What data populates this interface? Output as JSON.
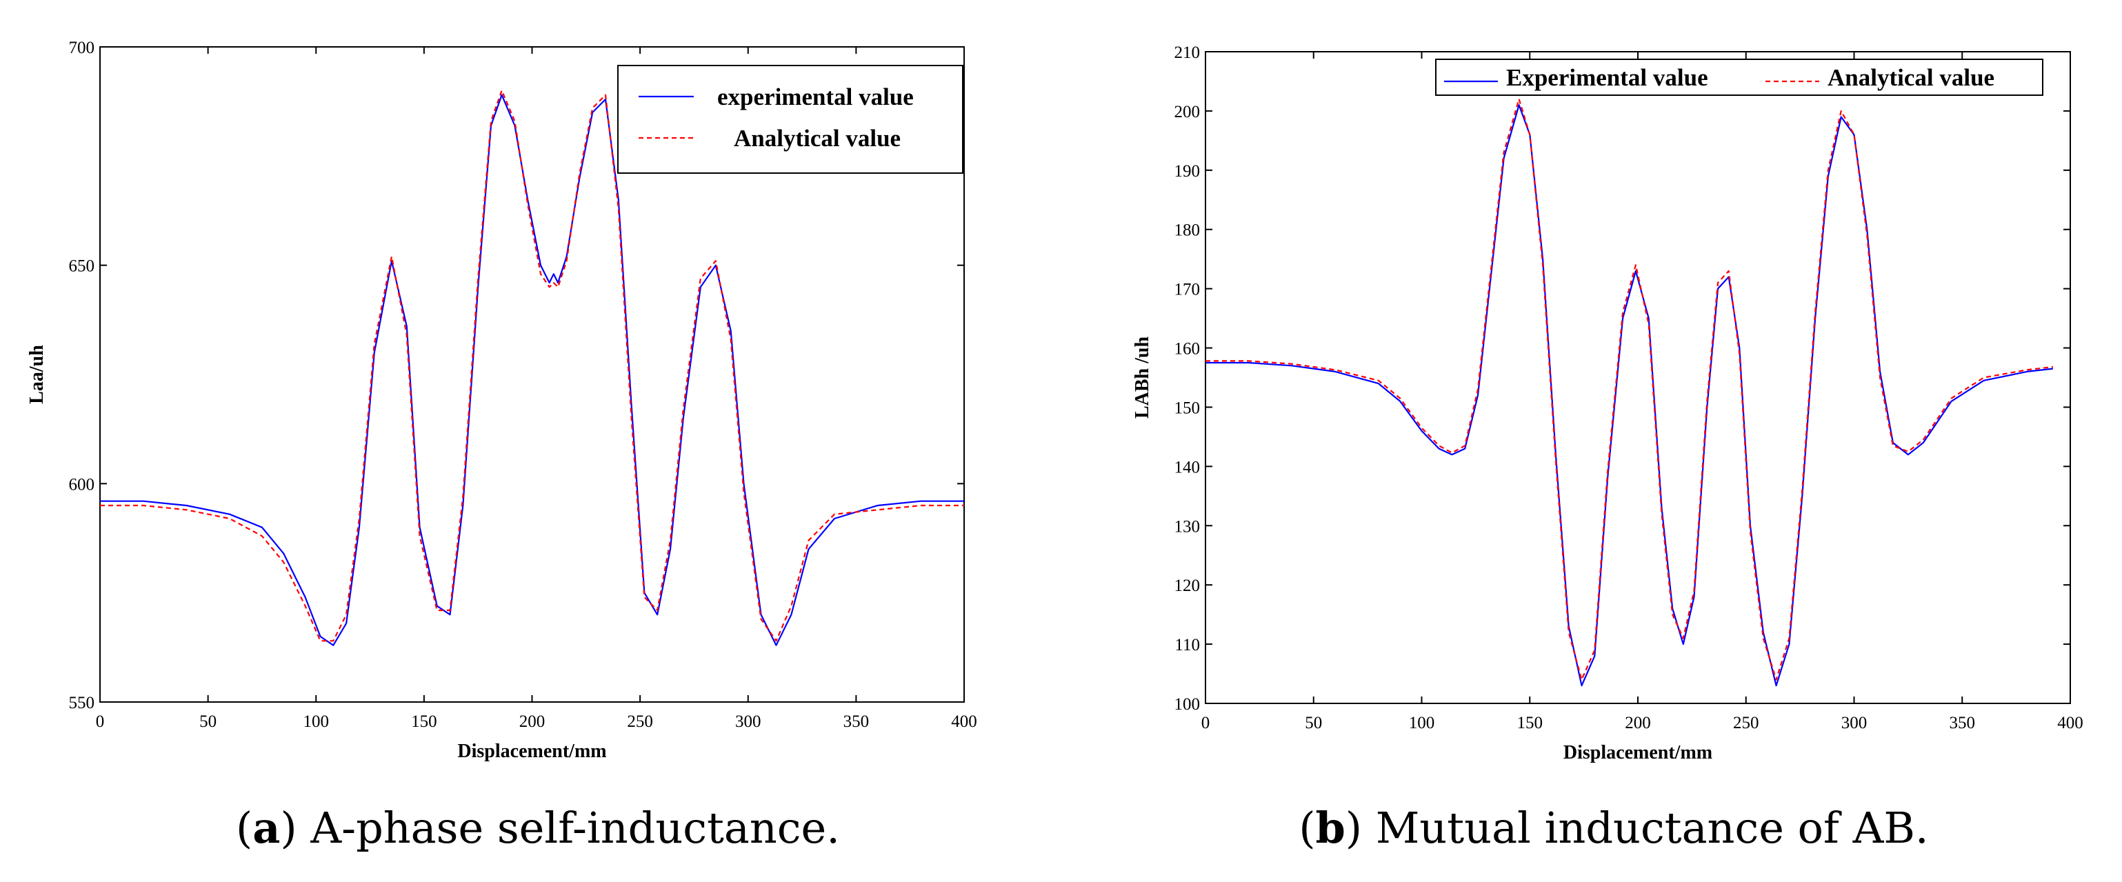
{
  "chart_data": [
    {
      "type": "line",
      "caption": {
        "letter": "a",
        "text": "A-phase self-inductance."
      },
      "xlabel": "Displacement/mm",
      "ylabel": "Laa/uh",
      "xlim": [
        0,
        400
      ],
      "ylim": [
        550,
        700
      ],
      "xticks": [
        0,
        50,
        100,
        150,
        200,
        250,
        300,
        350,
        400
      ],
      "yticks": [
        550,
        600,
        650,
        700
      ],
      "legend": {
        "position": "top-right",
        "layout": "vertical"
      },
      "series": [
        {
          "name": "experimental value",
          "color": "#0000ff",
          "dash": "solid",
          "x": [
            0,
            20,
            40,
            60,
            75,
            85,
            95,
            102,
            108,
            114,
            120,
            127,
            135,
            142,
            148,
            156,
            162,
            168,
            175,
            181,
            186,
            192,
            198,
            204,
            208,
            210,
            212,
            216,
            222,
            228,
            234,
            240,
            246,
            252,
            258,
            264,
            270,
            278,
            285,
            292,
            298,
            306,
            313,
            320,
            328,
            340,
            360,
            380,
            400
          ],
          "y": [
            596,
            596,
            595,
            593,
            590,
            584,
            574,
            565,
            563,
            568,
            590,
            630,
            651,
            636,
            590,
            572,
            570,
            595,
            645,
            682,
            689,
            682,
            665,
            650,
            646,
            648,
            646,
            652,
            670,
            685,
            688,
            665,
            618,
            575,
            570,
            585,
            615,
            645,
            650,
            635,
            600,
            570,
            563,
            570,
            585,
            592,
            595,
            596,
            596
          ]
        },
        {
          "name": "Analytical value",
          "color": "#ff0000",
          "dash": "dashed",
          "x": [
            0,
            20,
            40,
            60,
            75,
            85,
            95,
            102,
            108,
            114,
            120,
            127,
            135,
            142,
            148,
            156,
            162,
            168,
            175,
            181,
            186,
            192,
            198,
            204,
            208,
            210,
            212,
            216,
            222,
            228,
            234,
            240,
            246,
            252,
            258,
            264,
            270,
            278,
            285,
            292,
            298,
            306,
            313,
            320,
            328,
            340,
            360,
            380,
            400
          ],
          "y": [
            595,
            595,
            594,
            592,
            588,
            582,
            572,
            564,
            564,
            570,
            592,
            632,
            652,
            634,
            588,
            571,
            571,
            597,
            647,
            683,
            690,
            683,
            664,
            648,
            645,
            646,
            645,
            651,
            671,
            686,
            689,
            663,
            615,
            574,
            571,
            587,
            617,
            647,
            651,
            633,
            598,
            569,
            564,
            572,
            587,
            593,
            594,
            595,
            595
          ]
        }
      ]
    },
    {
      "type": "line",
      "caption": {
        "letter": "b",
        "text": "Mutual inductance of AB."
      },
      "xlabel": "Displacement/mm",
      "ylabel": "LABh /uh",
      "xlim": [
        0,
        400
      ],
      "ylim": [
        100,
        210
      ],
      "xticks": [
        0,
        50,
        100,
        150,
        200,
        250,
        300,
        350,
        400
      ],
      "yticks": [
        100,
        110,
        120,
        130,
        140,
        150,
        160,
        170,
        180,
        190,
        200,
        210
      ],
      "legend": {
        "position": "top-right",
        "layout": "horizontal"
      },
      "series": [
        {
          "name": "Experimental value",
          "color": "#0000ff",
          "dash": "solid",
          "x": [
            0,
            20,
            40,
            60,
            80,
            90,
            100,
            108,
            114,
            120,
            126,
            132,
            138,
            145,
            150,
            156,
            162,
            168,
            174,
            180,
            186,
            193,
            199,
            205,
            211,
            216,
            221,
            226,
            232,
            237,
            242,
            247,
            252,
            258,
            264,
            270,
            276,
            282,
            288,
            294,
            300,
            306,
            312,
            318,
            325,
            332,
            345,
            360,
            380,
            392
          ],
          "y": [
            157.5,
            157.5,
            157,
            156,
            154,
            151,
            146,
            143,
            142,
            143,
            152,
            172,
            192,
            201,
            196,
            175,
            142,
            113,
            103,
            108,
            138,
            165,
            173,
            165,
            133,
            116,
            110,
            118,
            150,
            170,
            172,
            160,
            130,
            112,
            103,
            110,
            135,
            165,
            189,
            199,
            196,
            180,
            156,
            144,
            142,
            144,
            151,
            154.5,
            156,
            156.5
          ]
        },
        {
          "name": "Analytical value",
          "color": "#ff0000",
          "dash": "dashed",
          "x": [
            0,
            20,
            40,
            60,
            80,
            90,
            100,
            108,
            114,
            120,
            126,
            132,
            138,
            145,
            150,
            156,
            162,
            168,
            174,
            180,
            186,
            193,
            199,
            205,
            211,
            216,
            221,
            226,
            232,
            237,
            242,
            247,
            252,
            258,
            264,
            270,
            276,
            282,
            288,
            294,
            300,
            306,
            312,
            318,
            325,
            332,
            345,
            360,
            380,
            392
          ],
          "y": [
            157.8,
            157.8,
            157.3,
            156.3,
            154.5,
            151.5,
            146.5,
            143.5,
            142.3,
            143.5,
            153,
            173,
            193,
            202,
            196,
            174,
            141,
            112,
            104,
            109,
            139,
            166,
            174,
            164,
            132,
            115,
            111,
            119,
            151,
            171,
            173,
            159,
            129,
            111,
            104,
            111,
            136,
            166,
            190,
            200,
            196,
            179,
            155,
            143.5,
            142.5,
            144.5,
            151.5,
            155,
            156.3,
            156.8
          ]
        }
      ]
    }
  ]
}
